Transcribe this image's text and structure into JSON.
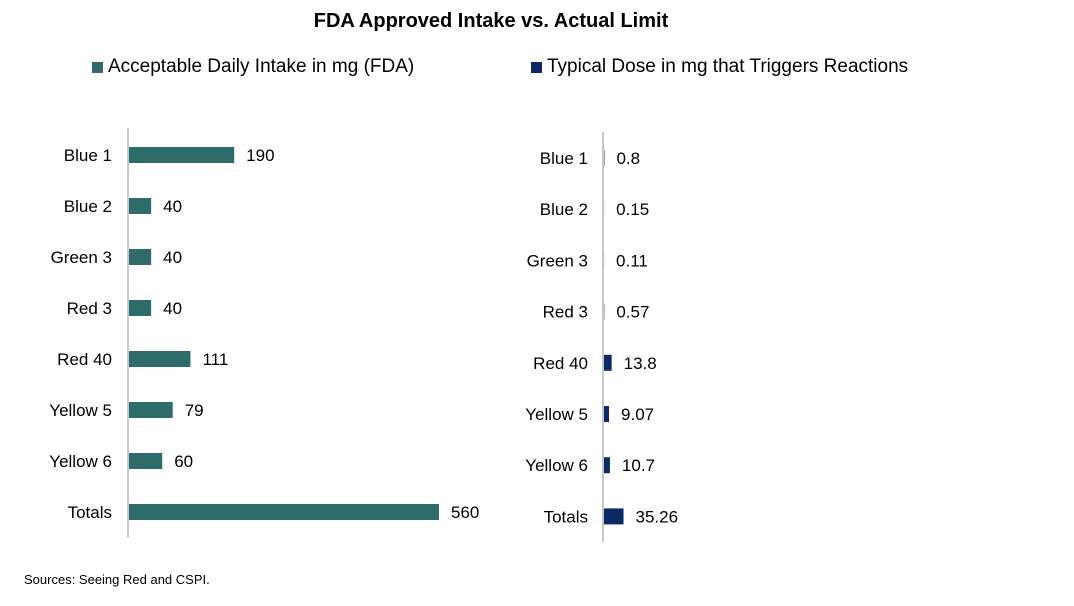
{
  "title": "FDA Approved Intake vs. Actual Limit",
  "source": "Sources: Seeing Red and CSPI.",
  "colors": {
    "series1": "#2e6b6b",
    "series2": "#0b2a63",
    "axis": "#c8c8c8"
  },
  "chart_data": [
    {
      "type": "bar",
      "orientation": "horizontal",
      "categories": [
        "Blue 1",
        "Blue 2",
        "Green 3",
        "Red 3",
        "Red 40",
        "Yellow 5",
        "Yellow 6",
        "Totals"
      ],
      "series": [
        {
          "name": "Acceptable Daily Intake in mg (FDA)",
          "values": [
            190,
            40,
            40,
            40,
            111,
            79,
            60,
            560
          ],
          "labels": [
            "190",
            "40",
            "40",
            "40",
            "111",
            "79",
            "60",
            "560"
          ]
        }
      ],
      "xlim": [
        0,
        560
      ]
    },
    {
      "type": "bar",
      "orientation": "horizontal",
      "categories": [
        "Blue 1",
        "Blue 2",
        "Green 3",
        "Red 3",
        "Red 40",
        "Yellow 5",
        "Yellow 6",
        "Totals"
      ],
      "series": [
        {
          "name": "Typical Dose in mg that Triggers Reactions",
          "values": [
            0.8,
            0.15,
            0.11,
            0.57,
            13.8,
            9.07,
            10.7,
            35.26
          ],
          "labels": [
            "0.8",
            "0.15",
            "0.11",
            "0.57",
            "13.8",
            "9.07",
            "10.7",
            "35.26"
          ]
        }
      ],
      "xlim": [
        0,
        560
      ]
    }
  ]
}
